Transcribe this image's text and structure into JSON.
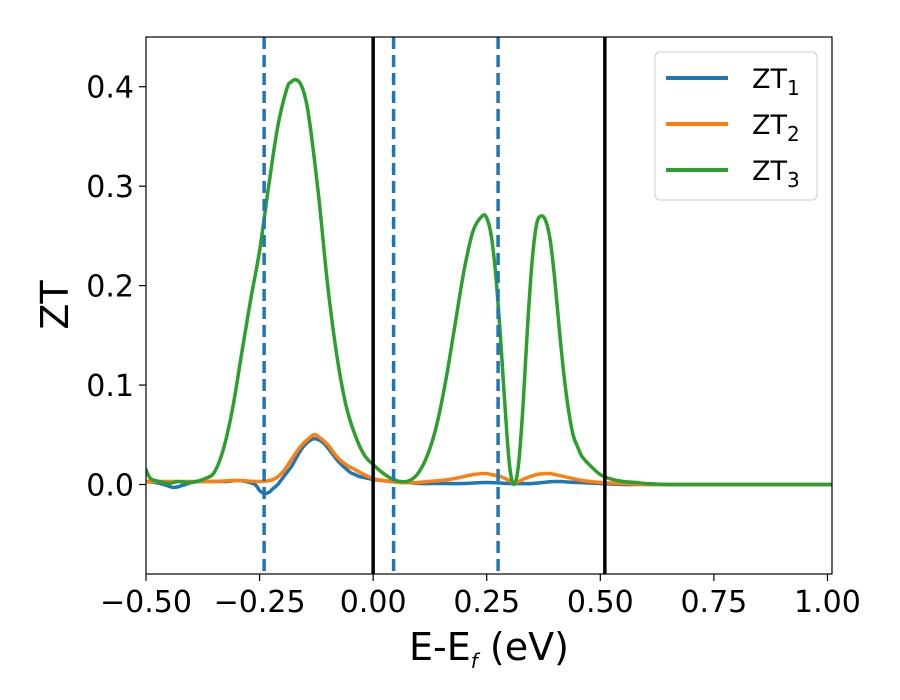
{
  "chart_data": {
    "type": "line",
    "xlabel": {
      "main": "E-E",
      "sub": "f",
      "suffix": " (eV)"
    },
    "ylabel": "ZT",
    "xlim": [
      -0.5,
      1.01
    ],
    "ylim": [
      -0.09,
      0.45
    ],
    "xticks": [
      -0.5,
      -0.25,
      0.0,
      0.25,
      0.5,
      0.75,
      1.0
    ],
    "xtick_labels": [
      "−0.50",
      "−0.25",
      "0.00",
      "0.25",
      "0.50",
      "0.75",
      "1.00"
    ],
    "yticks": [
      0.0,
      0.1,
      0.2,
      0.3,
      0.4
    ],
    "ytick_labels": [
      "0.0",
      "0.1",
      "0.2",
      "0.3",
      "0.4"
    ],
    "grid": false,
    "legend_position": "top-right",
    "vlines": [
      {
        "x": -0.24,
        "style": "dashed",
        "color": "#1f77b4"
      },
      {
        "x": 0.045,
        "style": "dashed",
        "color": "#1f77b4"
      },
      {
        "x": 0.275,
        "style": "dashed",
        "color": "#1f77b4"
      },
      {
        "x": 0.0,
        "style": "solid",
        "color": "#000000"
      },
      {
        "x": 0.51,
        "style": "solid",
        "color": "#000000"
      }
    ],
    "series": [
      {
        "name": "ZT",
        "name_sub": "1",
        "color": "#1f77b4",
        "x": [
          -0.5,
          -0.48,
          -0.46,
          -0.44,
          -0.42,
          -0.4,
          -0.38,
          -0.36,
          -0.34,
          -0.32,
          -0.3,
          -0.28,
          -0.26,
          -0.25,
          -0.24,
          -0.23,
          -0.22,
          -0.21,
          -0.2,
          -0.19,
          -0.18,
          -0.17,
          -0.16,
          -0.15,
          -0.14,
          -0.13,
          -0.12,
          -0.11,
          -0.1,
          -0.09,
          -0.08,
          -0.07,
          -0.06,
          -0.05,
          -0.04,
          -0.03,
          -0.02,
          -0.01,
          0.0,
          0.02,
          0.04,
          0.06,
          0.08,
          0.1,
          0.15,
          0.2,
          0.25,
          0.3,
          0.35,
          0.4,
          0.45,
          0.5,
          0.55,
          0.6,
          0.7,
          0.8,
          0.9,
          1.0,
          1.01
        ],
        "y": [
          0.003,
          0.002,
          0.0,
          -0.003,
          -0.001,
          0.002,
          0.003,
          0.003,
          0.003,
          0.003,
          0.004,
          0.003,
          0.0,
          -0.006,
          -0.009,
          -0.008,
          -0.004,
          0.0,
          0.006,
          0.012,
          0.018,
          0.026,
          0.034,
          0.04,
          0.044,
          0.046,
          0.045,
          0.042,
          0.037,
          0.031,
          0.025,
          0.02,
          0.016,
          0.012,
          0.01,
          0.008,
          0.007,
          0.006,
          0.005,
          0.004,
          0.003,
          0.002,
          0.002,
          0.001,
          0.001,
          0.001,
          0.002,
          0.001,
          0.001,
          0.003,
          0.002,
          0.001,
          0.0,
          0.0,
          0.0,
          0.0,
          0.0,
          0.0,
          0.0
        ]
      },
      {
        "name": "ZT",
        "name_sub": "2",
        "color": "#ff7f0e",
        "x": [
          -0.5,
          -0.45,
          -0.4,
          -0.35,
          -0.3,
          -0.25,
          -0.22,
          -0.2,
          -0.18,
          -0.16,
          -0.14,
          -0.13,
          -0.12,
          -0.1,
          -0.08,
          -0.06,
          -0.04,
          -0.02,
          0.0,
          0.02,
          0.04,
          0.06,
          0.08,
          0.1,
          0.12,
          0.15,
          0.18,
          0.2,
          0.22,
          0.24,
          0.25,
          0.26,
          0.28,
          0.3,
          0.31,
          0.32,
          0.34,
          0.36,
          0.38,
          0.39,
          0.4,
          0.42,
          0.44,
          0.46,
          0.5,
          0.55,
          0.6,
          0.7,
          0.8,
          1.0,
          1.01
        ],
        "y": [
          0.003,
          0.003,
          0.003,
          0.003,
          0.004,
          0.003,
          0.005,
          0.012,
          0.025,
          0.038,
          0.047,
          0.05,
          0.048,
          0.04,
          0.028,
          0.02,
          0.015,
          0.01,
          0.006,
          0.004,
          0.003,
          0.002,
          0.002,
          0.002,
          0.003,
          0.004,
          0.006,
          0.008,
          0.01,
          0.011,
          0.011,
          0.01,
          0.008,
          0.004,
          0.001,
          0.003,
          0.007,
          0.01,
          0.011,
          0.011,
          0.01,
          0.008,
          0.006,
          0.004,
          0.002,
          0.001,
          0.0,
          0.0,
          0.0,
          0.0,
          0.0
        ]
      },
      {
        "name": "ZT",
        "name_sub": "3",
        "color": "#2ca02c",
        "x": [
          -0.5,
          -0.49,
          -0.47,
          -0.45,
          -0.43,
          -0.41,
          -0.39,
          -0.37,
          -0.35,
          -0.33,
          -0.31,
          -0.29,
          -0.27,
          -0.25,
          -0.23,
          -0.21,
          -0.19,
          -0.18,
          -0.17,
          -0.16,
          -0.15,
          -0.14,
          -0.12,
          -0.1,
          -0.08,
          -0.06,
          -0.04,
          -0.02,
          0.0,
          0.02,
          0.04,
          0.06,
          0.08,
          0.1,
          0.12,
          0.14,
          0.16,
          0.18,
          0.2,
          0.22,
          0.24,
          0.25,
          0.26,
          0.27,
          0.28,
          0.29,
          0.3,
          0.31,
          0.32,
          0.33,
          0.34,
          0.35,
          0.36,
          0.37,
          0.38,
          0.39,
          0.4,
          0.41,
          0.42,
          0.43,
          0.44,
          0.45,
          0.46,
          0.48,
          0.5,
          0.52,
          0.55,
          0.58,
          0.6,
          0.65,
          0.7,
          0.8,
          0.9,
          1.0,
          1.01
        ],
        "y": [
          0.015,
          0.006,
          0.003,
          0.001,
          0.003,
          0.002,
          0.003,
          0.006,
          0.012,
          0.035,
          0.075,
          0.13,
          0.185,
          0.235,
          0.3,
          0.36,
          0.398,
          0.405,
          0.407,
          0.403,
          0.39,
          0.365,
          0.29,
          0.2,
          0.13,
          0.08,
          0.05,
          0.03,
          0.02,
          0.012,
          0.006,
          0.003,
          0.004,
          0.012,
          0.03,
          0.06,
          0.105,
          0.16,
          0.215,
          0.255,
          0.27,
          0.268,
          0.25,
          0.21,
          0.15,
          0.08,
          0.02,
          0.0,
          0.02,
          0.08,
          0.16,
          0.225,
          0.262,
          0.27,
          0.265,
          0.245,
          0.205,
          0.155,
          0.11,
          0.075,
          0.05,
          0.038,
          0.028,
          0.018,
          0.01,
          0.006,
          0.003,
          0.002,
          0.001,
          0.0,
          0.0,
          0.0,
          0.0,
          0.0,
          0.0
        ]
      }
    ]
  }
}
